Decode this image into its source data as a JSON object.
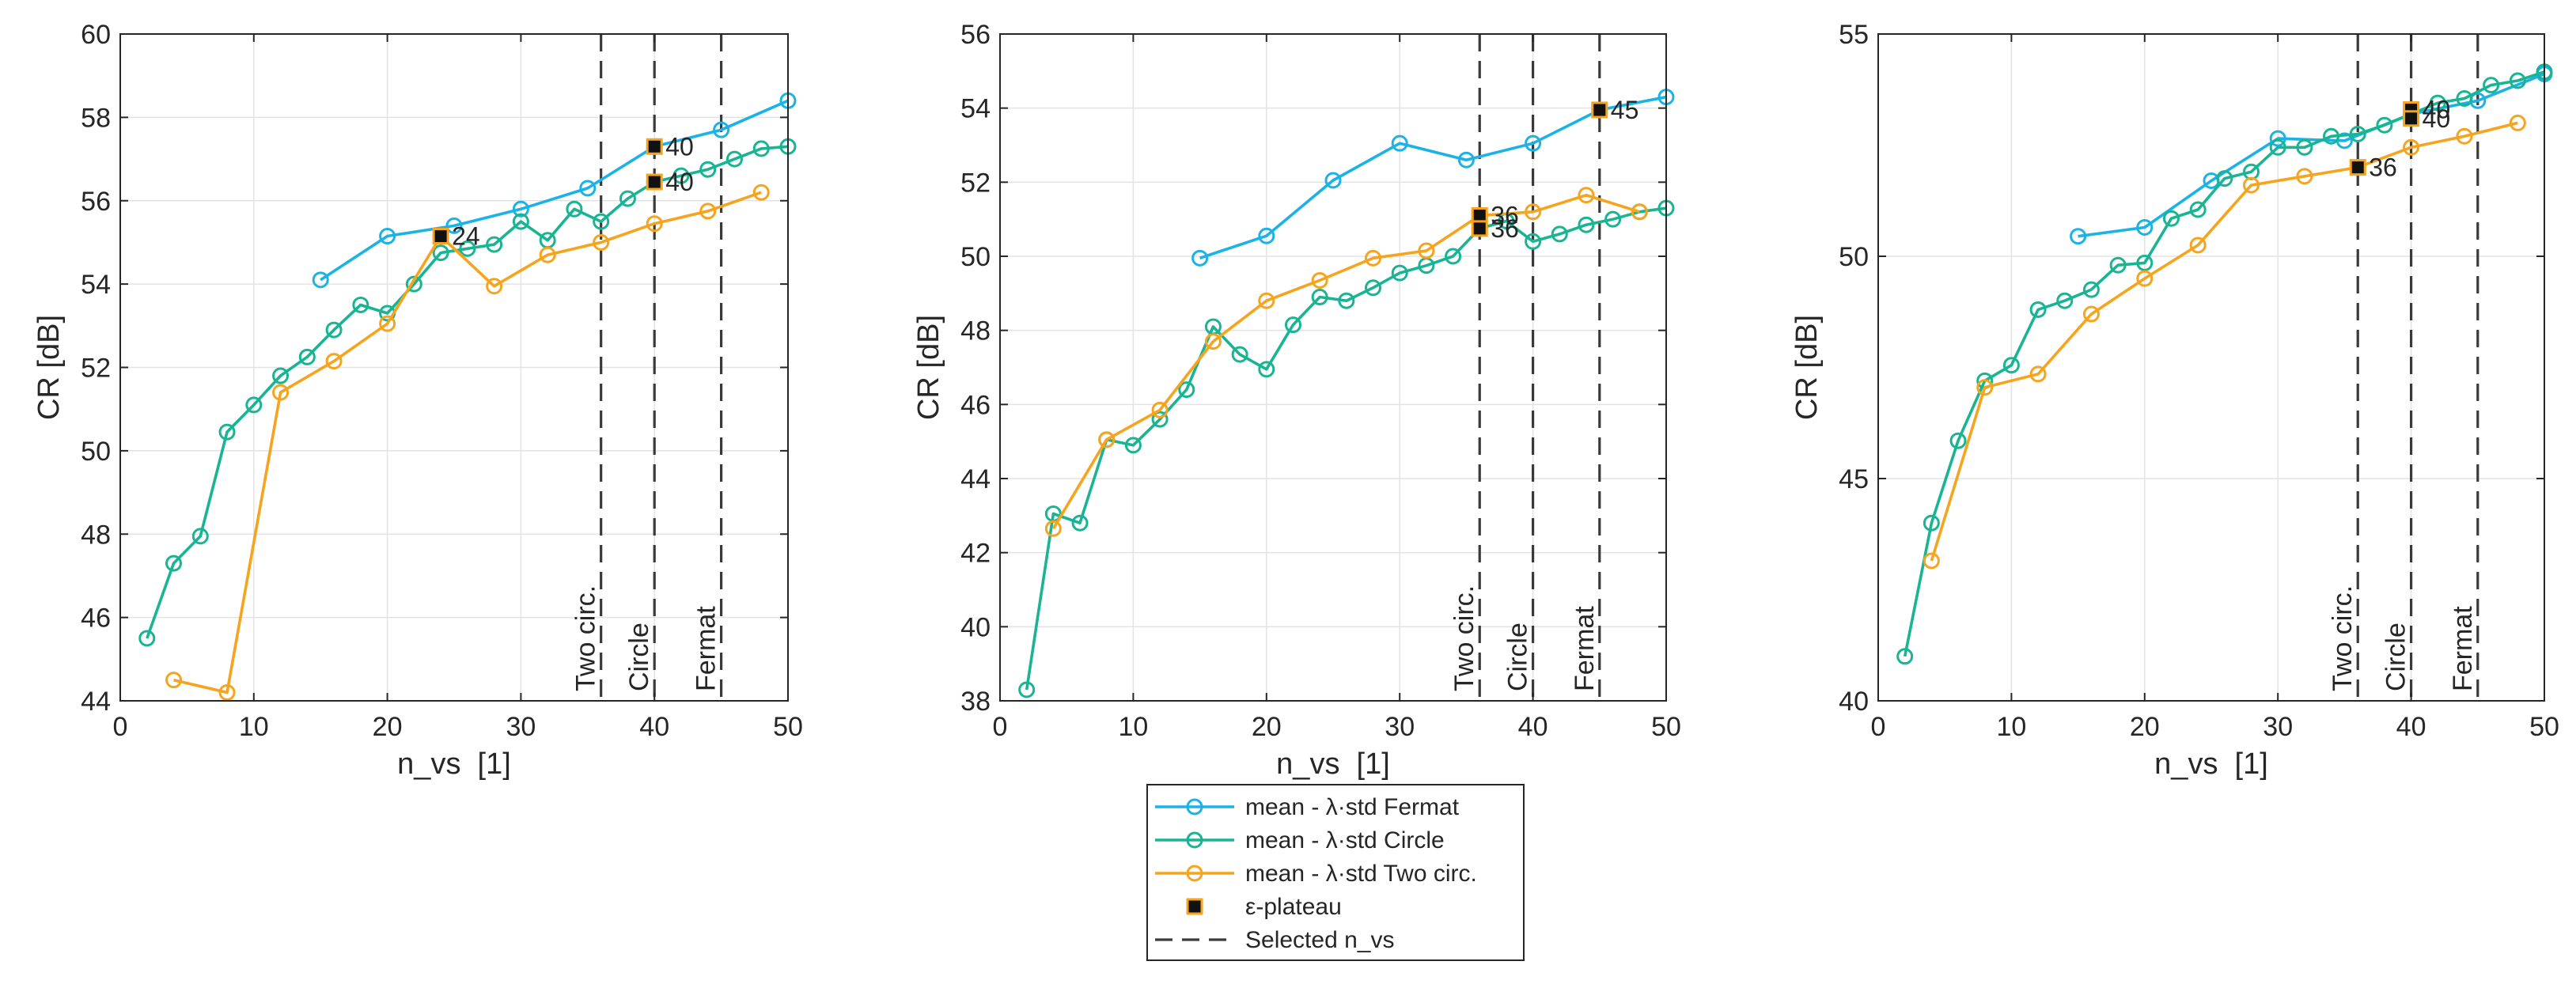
{
  "colors": {
    "Fermat": "#1BB2E8",
    "Circle": "#19B493",
    "Two circ.": "#F6A41E",
    "plateau_fill": "#111111",
    "plateau_edge": "#F6A41E",
    "axis": "#262626",
    "grid": "#E3E3E3",
    "vline": "#3A3A3A"
  },
  "legend": {
    "entries": [
      {
        "series": "Fermat",
        "label": "mean - λ·std Fermat"
      },
      {
        "series": "Circle",
        "label": "mean - λ·std Circle"
      },
      {
        "series": "Two circ.",
        "label": "mean - λ·std Two circ."
      },
      {
        "series": "plateau",
        "label": "ε-plateau"
      },
      {
        "series": "selected",
        "label": "Selected n_vs"
      }
    ]
  },
  "chart_data": [
    {
      "type": "line",
      "title": "",
      "xlabel": "n_vs  [1]",
      "ylabel": "CR [dB]",
      "xlim": [
        0,
        50
      ],
      "ylim": [
        44,
        60
      ],
      "xticks": [
        0,
        10,
        20,
        30,
        40,
        50
      ],
      "yticks": [
        44,
        46,
        48,
        50,
        52,
        54,
        56,
        58,
        60
      ],
      "grid": true,
      "series": [
        {
          "name": "Fermat",
          "x": [
            15,
            20,
            25,
            30,
            35,
            40,
            45,
            50
          ],
          "y": [
            54.1,
            55.15,
            55.4,
            55.8,
            56.3,
            57.3,
            57.7,
            58.4
          ]
        },
        {
          "name": "Circle",
          "x": [
            2,
            4,
            6,
            8,
            10,
            12,
            14,
            16,
            18,
            20,
            22,
            24,
            26,
            28,
            30,
            32,
            34,
            36,
            38,
            40,
            42,
            44,
            46,
            48,
            50
          ],
          "y": [
            45.5,
            47.3,
            47.95,
            50.45,
            51.1,
            51.8,
            52.25,
            52.9,
            53.5,
            53.3,
            54.0,
            54.75,
            54.85,
            54.95,
            55.5,
            55.05,
            55.8,
            55.5,
            56.05,
            56.45,
            56.6,
            56.75,
            57.0,
            57.25,
            57.3
          ]
        },
        {
          "name": "Two circ.",
          "x": [
            4,
            8,
            12,
            16,
            20,
            24,
            28,
            32,
            36,
            40,
            44,
            48
          ],
          "y": [
            44.5,
            44.2,
            51.4,
            52.15,
            53.05,
            55.15,
            53.95,
            54.7,
            55.0,
            55.45,
            55.75,
            56.2
          ]
        }
      ],
      "plateau_points": [
        {
          "x": 24,
          "y": 55.15,
          "label": "24"
        },
        {
          "x": 40,
          "y": 57.3,
          "label": "40"
        },
        {
          "x": 40,
          "y": 56.45,
          "label": "40"
        }
      ],
      "selected_lines": [
        {
          "x": 36,
          "label": "Two circ."
        },
        {
          "x": 40,
          "label": "Circle"
        },
        {
          "x": 45,
          "label": "Fermat"
        }
      ]
    },
    {
      "type": "line",
      "title": "",
      "xlabel": "n_vs  [1]",
      "ylabel": "CR [dB]",
      "xlim": [
        0,
        50
      ],
      "ylim": [
        38,
        56
      ],
      "xticks": [
        0,
        10,
        20,
        30,
        40,
        50
      ],
      "yticks": [
        38,
        40,
        42,
        44,
        46,
        48,
        50,
        52,
        54,
        56
      ],
      "grid": true,
      "series": [
        {
          "name": "Fermat",
          "x": [
            15,
            20,
            25,
            30,
            35,
            40,
            45,
            50
          ],
          "y": [
            49.95,
            50.55,
            52.05,
            53.05,
            52.6,
            53.05,
            53.95,
            54.3
          ]
        },
        {
          "name": "Circle",
          "x": [
            2,
            4,
            6,
            8,
            10,
            12,
            14,
            16,
            18,
            20,
            22,
            24,
            26,
            28,
            30,
            32,
            34,
            36,
            38,
            40,
            42,
            44,
            46,
            48,
            50
          ],
          "y": [
            38.3,
            43.05,
            42.8,
            45.05,
            44.9,
            45.6,
            46.4,
            48.1,
            47.35,
            46.95,
            48.15,
            48.9,
            48.8,
            49.15,
            49.55,
            49.75,
            50.0,
            50.75,
            50.95,
            50.4,
            50.6,
            50.85,
            51.0,
            51.2,
            51.3
          ]
        },
        {
          "name": "Two circ.",
          "x": [
            4,
            8,
            12,
            16,
            20,
            24,
            28,
            32,
            36,
            40,
            44,
            48
          ],
          "y": [
            42.65,
            45.05,
            45.85,
            47.7,
            48.8,
            49.35,
            49.95,
            50.15,
            51.1,
            51.2,
            51.65,
            51.2
          ]
        }
      ],
      "plateau_points": [
        {
          "x": 36,
          "y": 51.1,
          "label": "36"
        },
        {
          "x": 36,
          "y": 50.75,
          "label": "36"
        },
        {
          "x": 45,
          "y": 53.95,
          "label": "45"
        }
      ],
      "selected_lines": [
        {
          "x": 36,
          "label": "Two circ."
        },
        {
          "x": 40,
          "label": "Circle"
        },
        {
          "x": 45,
          "label": "Fermat"
        }
      ]
    },
    {
      "type": "line",
      "title": "",
      "xlabel": "n_vs  [1]",
      "ylabel": "CR [dB]",
      "xlim": [
        0,
        50
      ],
      "ylim": [
        40,
        55
      ],
      "xticks": [
        0,
        10,
        20,
        30,
        40,
        50
      ],
      "yticks": [
        40,
        45,
        50,
        55
      ],
      "grid": true,
      "series": [
        {
          "name": "Fermat",
          "x": [
            15,
            20,
            25,
            30,
            35,
            40,
            45,
            50
          ],
          "y": [
            50.45,
            50.65,
            51.7,
            52.65,
            52.6,
            53.2,
            53.5,
            54.1
          ]
        },
        {
          "name": "Circle",
          "x": [
            2,
            4,
            6,
            8,
            10,
            12,
            14,
            16,
            18,
            20,
            22,
            24,
            26,
            28,
            30,
            32,
            34,
            36,
            38,
            40,
            42,
            44,
            46,
            48,
            50
          ],
          "y": [
            41.0,
            44.0,
            45.85,
            47.2,
            47.55,
            48.8,
            49.0,
            49.25,
            49.8,
            49.85,
            50.85,
            51.05,
            51.75,
            51.9,
            52.45,
            52.45,
            52.7,
            52.75,
            52.95,
            53.2,
            53.45,
            53.55,
            53.85,
            53.95,
            54.15
          ]
        },
        {
          "name": "Two circ.",
          "x": [
            4,
            8,
            12,
            16,
            20,
            24,
            28,
            32,
            36,
            40,
            44,
            48
          ],
          "y": [
            43.15,
            47.05,
            47.35,
            48.7,
            49.5,
            50.25,
            51.6,
            51.8,
            52.0,
            52.45,
            52.7,
            53.0
          ]
        }
      ],
      "plateau_points": [
        {
          "x": 40,
          "y": 53.3,
          "label": "40"
        },
        {
          "x": 40,
          "y": 53.1,
          "label": "40"
        },
        {
          "x": 36,
          "y": 52.0,
          "label": "36"
        }
      ],
      "selected_lines": [
        {
          "x": 36,
          "label": "Two circ."
        },
        {
          "x": 40,
          "label": "Circle"
        },
        {
          "x": 45,
          "label": "Fermat"
        }
      ]
    }
  ]
}
